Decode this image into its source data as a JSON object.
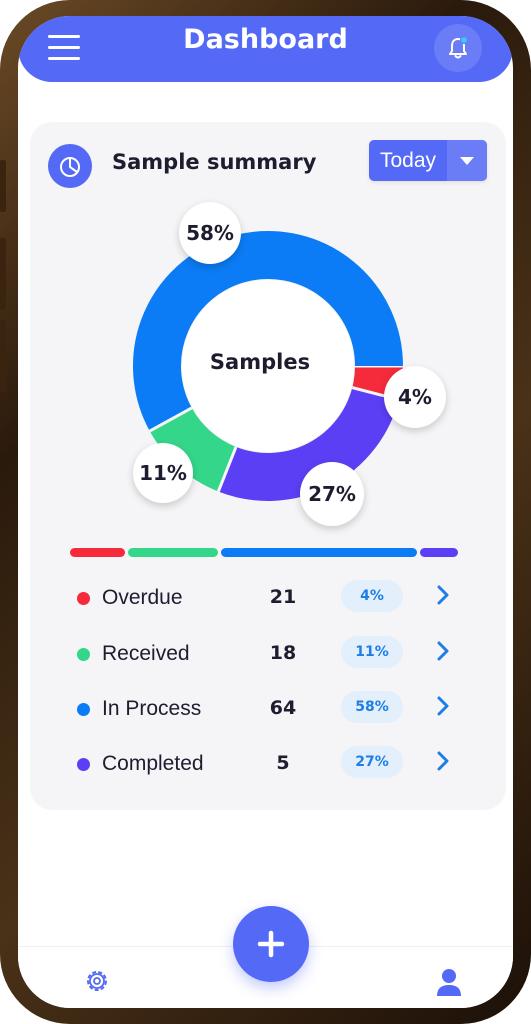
{
  "header": {
    "title": "Dashboard",
    "menu_icon": "hamburger-menu-icon",
    "notification_icon": "bell-icon",
    "notification_dot_color": "#3ec6ff"
  },
  "summary": {
    "title": "Sample summary",
    "icon": "pie-chart-icon",
    "period": {
      "selected": "Today",
      "icon": "caret-down-icon"
    }
  },
  "chart_data": {
    "type": "pie",
    "donut": true,
    "center_label": "Samples",
    "categories": [
      "Overdue",
      "Received",
      "In Process",
      "Completed"
    ],
    "values": [
      4,
      11,
      58,
      27
    ],
    "labels": [
      "4%",
      "11%",
      "58%",
      "27%"
    ],
    "colors": [
      "#f52a3a",
      "#34d68a",
      "#0b7cf5",
      "#5b3ff5"
    ]
  },
  "legend": {
    "items": [
      {
        "label": "Overdue",
        "count": "21",
        "percent": "4%",
        "color": "#f52a3a"
      },
      {
        "label": "Received",
        "count": "18",
        "percent": "11%",
        "color": "#34d68a"
      },
      {
        "label": "In Process",
        "count": "64",
        "percent": "58%",
        "color": "#0b7cf5"
      },
      {
        "label": "Completed",
        "count": "5",
        "percent": "27%",
        "color": "#5b3ff5"
      }
    ]
  },
  "bottom_nav": {
    "settings_icon": "gear-icon",
    "add_icon": "plus-icon",
    "profile_icon": "user-icon"
  },
  "colors": {
    "accent": "#5469f5",
    "card_background": "#f5f5f7",
    "badge_background": "#e4effc",
    "badge_text": "#1e7ee6"
  }
}
